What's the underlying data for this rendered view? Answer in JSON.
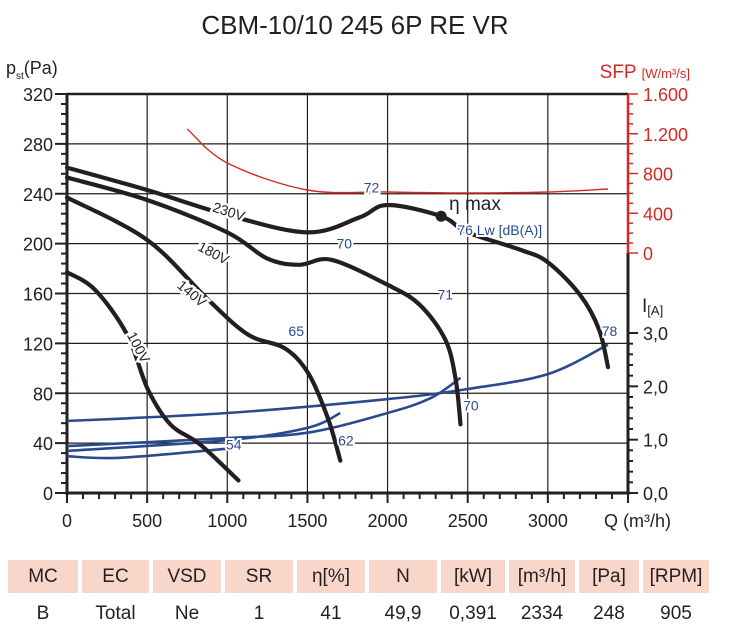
{
  "chart_data": {
    "type": "line",
    "title": "CBM-10/10 245 6P RE VR",
    "xlabel": "Q (m³/h)",
    "ylabel": "pst(Pa)",
    "ylabel_main": "p",
    "ylabel_sub": "st",
    "ylabel_unit": "(Pa)",
    "xlim": [
      0,
      3500
    ],
    "ylim": [
      0,
      320
    ],
    "x_ticks": [
      0,
      500,
      1000,
      1500,
      2000,
      2500,
      3000
    ],
    "x_tick_labels": [
      "0",
      "500",
      "1000",
      "1500",
      "2000",
      "2500",
      "3000"
    ],
    "y_ticks": [
      0,
      40,
      80,
      120,
      160,
      200,
      240,
      280,
      320
    ],
    "y_tick_labels": [
      "0",
      "40",
      "80",
      "120",
      "160",
      "200",
      "240",
      "280",
      "320"
    ],
    "grid": true,
    "sfp_axis": {
      "label": "SFP",
      "unit": "[W/m³/s]",
      "range": [
        0,
        1600
      ],
      "ticks": [
        0,
        400,
        800,
        1200,
        1600
      ],
      "tick_labels": [
        "0",
        "400",
        "800",
        "1.200",
        "1.600"
      ],
      "color": "#d22a22"
    },
    "current_axis": {
      "label": "I",
      "unit": "[A]",
      "range": [
        0,
        3.0
      ],
      "ticks": [
        0,
        1,
        2,
        3
      ],
      "tick_labels": [
        "0,0",
        "1,0",
        "2,0",
        "3,0"
      ]
    },
    "pressure_series": [
      {
        "name": "230V",
        "color": "#231f20",
        "points": [
          [
            0,
            261
          ],
          [
            500,
            243
          ],
          [
            1000,
            223
          ],
          [
            1500,
            209
          ],
          [
            1825,
            221
          ],
          [
            2000,
            231
          ],
          [
            2334,
            222
          ],
          [
            2500,
            209
          ],
          [
            2830,
            195
          ],
          [
            3000,
            185
          ],
          [
            3200,
            159
          ],
          [
            3320,
            131
          ],
          [
            3375,
            101
          ]
        ]
      },
      {
        "name": "180V",
        "color": "#231f20",
        "points": [
          [
            0,
            253
          ],
          [
            500,
            235
          ],
          [
            1000,
            209
          ],
          [
            1250,
            188
          ],
          [
            1450,
            183
          ],
          [
            1650,
            187
          ],
          [
            2000,
            167
          ],
          [
            2200,
            151
          ],
          [
            2360,
            123
          ],
          [
            2425,
            91
          ],
          [
            2455,
            55
          ]
        ]
      },
      {
        "name": "140V",
        "color": "#231f20",
        "points": [
          [
            0,
            237
          ],
          [
            500,
            203
          ],
          [
            880,
            155
          ],
          [
            1130,
            127
          ],
          [
            1360,
            116
          ],
          [
            1510,
            95
          ],
          [
            1630,
            59
          ],
          [
            1705,
            26
          ]
        ]
      },
      {
        "name": "100V",
        "color": "#231f20",
        "points": [
          [
            0,
            177
          ],
          [
            175,
            163
          ],
          [
            375,
            127
          ],
          [
            505,
            83
          ],
          [
            645,
            55
          ],
          [
            830,
            39
          ],
          [
            1070,
            10
          ]
        ]
      }
    ],
    "sfp_series": {
      "name": "SFP",
      "color": "#d22a22",
      "points": [
        [
          750,
          1248
        ],
        [
          1000,
          906
        ],
        [
          1500,
          634
        ],
        [
          2000,
          614
        ],
        [
          2500,
          604
        ],
        [
          3000,
          614
        ],
        [
          3375,
          644
        ]
      ]
    },
    "current_series": [
      {
        "name": "I 230V",
        "color": "#2a4a8e",
        "points": [
          [
            0,
            1.35
          ],
          [
            1000,
            1.5
          ],
          [
            2000,
            1.76
          ],
          [
            2500,
            1.95
          ],
          [
            3000,
            2.23
          ],
          [
            3375,
            2.78
          ]
        ]
      },
      {
        "name": "I 180V",
        "color": "#2a4a8e",
        "points": [
          [
            0,
            0.88
          ],
          [
            1000,
            1.03
          ],
          [
            1500,
            1.13
          ],
          [
            2000,
            1.5
          ],
          [
            2270,
            1.78
          ],
          [
            2455,
            2.16
          ]
        ]
      },
      {
        "name": "I 140V",
        "color": "#2a4a8e",
        "points": [
          [
            0,
            0.79
          ],
          [
            1000,
            0.99
          ],
          [
            1500,
            1.22
          ],
          [
            1705,
            1.5
          ]
        ]
      },
      {
        "name": "I 100V",
        "color": "#2a4a8e",
        "points": [
          [
            0,
            0.69
          ],
          [
            330,
            0.66
          ],
          [
            1000,
            0.83
          ]
        ]
      }
    ],
    "eta_max": {
      "label": "η max",
      "q": 2334,
      "p": 222
    },
    "annotations": {
      "voltage_labels": [
        {
          "text": "230V",
          "q": 1000,
          "p": 222,
          "angle": 18
        },
        {
          "text": "180V",
          "q": 900,
          "p": 189,
          "angle": 28
        },
        {
          "text": "140V",
          "q": 760,
          "p": 157,
          "angle": 40
        },
        {
          "text": "100V",
          "q": 420,
          "p": 115,
          "angle": 62
        }
      ],
      "sound_labels": [
        {
          "text": "72",
          "q": 1900,
          "p": 241
        },
        {
          "text": "70",
          "q": 1730,
          "p": 196
        },
        {
          "text": "71",
          "q": 2360,
          "p": 155
        },
        {
          "text": "65",
          "q": 1430,
          "p": 126
        },
        {
          "text": "62",
          "q": 1740,
          "p": 38
        },
        {
          "text": "54",
          "q": 1040,
          "p": 35
        },
        {
          "text": "70",
          "q": 2520,
          "p": 66
        },
        {
          "text": "78",
          "q": 3385,
          "p": 126
        },
        {
          "text": "76 Lw [dB(A)]",
          "q": 2700,
          "p": 207
        }
      ]
    }
  },
  "table": {
    "headers": [
      "MC",
      "EC",
      "VSD",
      "SR",
      "η[%]",
      "N",
      "[kW]",
      "[m³/h]",
      "[Pa]",
      "[RPM]"
    ],
    "values": [
      "B",
      "Total",
      "Ne",
      "1",
      "41",
      "49,9",
      "0,391",
      "2334",
      "248",
      "905"
    ]
  }
}
